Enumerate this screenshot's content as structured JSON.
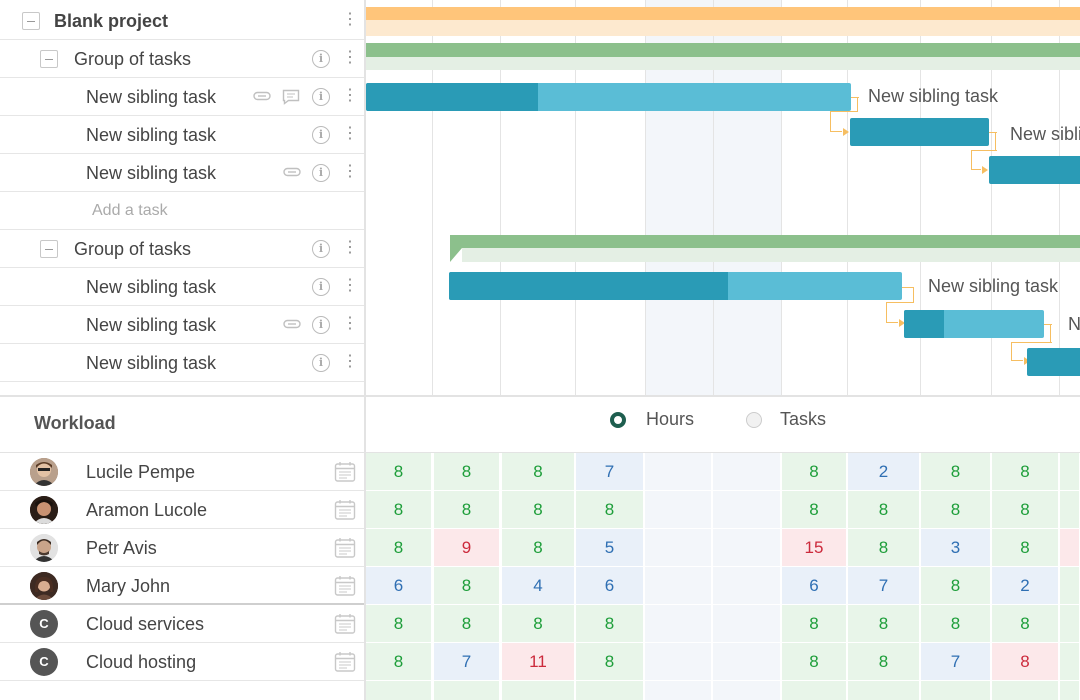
{
  "project": {
    "title": "Blank project"
  },
  "tree": [
    {
      "type": "group",
      "label": "Group of tasks"
    },
    {
      "type": "task",
      "label": "New sibling task",
      "attachment": true,
      "comment": true
    },
    {
      "type": "task",
      "label": "New sibling task",
      "attachment": false,
      "comment": false
    },
    {
      "type": "task",
      "label": "New sibling task",
      "attachment": true,
      "comment": false
    },
    {
      "type": "add",
      "label": "Add a task"
    },
    {
      "type": "group",
      "label": "Group of tasks"
    },
    {
      "type": "task",
      "label": "New sibling task",
      "attachment": false,
      "comment": false
    },
    {
      "type": "task",
      "label": "New sibling task",
      "attachment": true,
      "comment": false
    },
    {
      "type": "task",
      "label": "New sibling task",
      "attachment": false,
      "comment": false
    }
  ],
  "gantt_labels": [
    "New sibling task",
    "New sibli",
    "New sibling task",
    "N"
  ],
  "workload": {
    "title": "Workload",
    "mode_options": [
      "Hours",
      "Tasks"
    ],
    "selected_mode": "Hours",
    "resources": [
      {
        "name": "Lucile Pempe",
        "type": "person",
        "hours": [
          "8",
          "8",
          "8",
          "7",
          "",
          "",
          "8",
          "2",
          "8",
          "8"
        ]
      },
      {
        "name": "Aramon Lucole",
        "type": "person",
        "hours": [
          "8",
          "8",
          "8",
          "8",
          "",
          "",
          "8",
          "8",
          "8",
          "8"
        ]
      },
      {
        "name": "Petr Avis",
        "type": "person",
        "hours": [
          "8",
          "9",
          "8",
          "5",
          "",
          "",
          "15",
          "8",
          "3",
          "8"
        ]
      },
      {
        "name": "Mary John",
        "type": "person",
        "hours": [
          "6",
          "8",
          "4",
          "6",
          "",
          "",
          "6",
          "7",
          "8",
          "2"
        ]
      },
      {
        "name": "Cloud services",
        "type": "service",
        "initial": "C",
        "hours": [
          "8",
          "8",
          "8",
          "8",
          "",
          "",
          "8",
          "8",
          "8",
          "8"
        ]
      },
      {
        "name": "Cloud hosting",
        "type": "service",
        "initial": "C",
        "hours": [
          "8",
          "7",
          "11",
          "8",
          "",
          "",
          "8",
          "8",
          "7",
          "8"
        ]
      }
    ]
  },
  "colors": {
    "project_bar": "#ffc57a",
    "group_bar": "#8cc08c",
    "task_bar": "#5abdd6",
    "task_progress": "#2a9bb6",
    "dependency": "#f6be61",
    "radio_selected": "#1e5e4f"
  }
}
